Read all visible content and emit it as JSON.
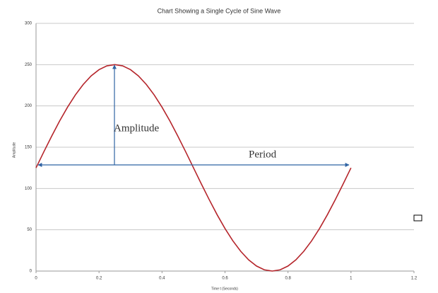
{
  "chart_data": {
    "type": "line",
    "title": "Chart Showing a Single Cycle of Sine Wave",
    "x_label": "Time t (Seconds)",
    "y_label": "Amplitude",
    "annotations": [
      "Amplitude",
      "Period"
    ],
    "x": [
      0,
      0.025,
      0.05,
      0.075,
      0.1,
      0.125,
      0.15,
      0.175,
      0.2,
      0.225,
      0.25,
      0.275,
      0.3,
      0.325,
      0.35,
      0.375,
      0.4,
      0.425,
      0.45,
      0.475,
      0.5,
      0.525,
      0.55,
      0.575,
      0.6,
      0.625,
      0.65,
      0.675,
      0.7,
      0.725,
      0.75,
      0.775,
      0.8,
      0.825,
      0.85,
      0.875,
      0.9,
      0.925,
      0.95,
      0.975,
      1
    ],
    "series": [
      {
        "color": "#b5252b",
        "values": [
          125,
          144.6,
          163.6,
          181.8,
          198.5,
          213.4,
          226.1,
          236.4,
          243.9,
          248.5,
          250,
          248.5,
          243.9,
          236.4,
          226.1,
          213.4,
          198.5,
          181.8,
          163.6,
          144.6,
          125,
          105.4,
          86.4,
          68.2,
          51.5,
          36.6,
          23.9,
          13.6,
          6.1,
          1.5,
          0,
          1.5,
          6.1,
          13.6,
          23.9,
          36.6,
          51.5,
          68.2,
          86.4,
          105.4,
          125
        ]
      }
    ],
    "xlim": [
      0,
      1.2
    ],
    "xticks": [
      0,
      0.2,
      0.4,
      0.6,
      0.8,
      1,
      1.2
    ],
    "ylim": [
      0,
      300
    ],
    "yticks": [
      0,
      50,
      100,
      150,
      200,
      250,
      300
    ],
    "grid": true
  }
}
